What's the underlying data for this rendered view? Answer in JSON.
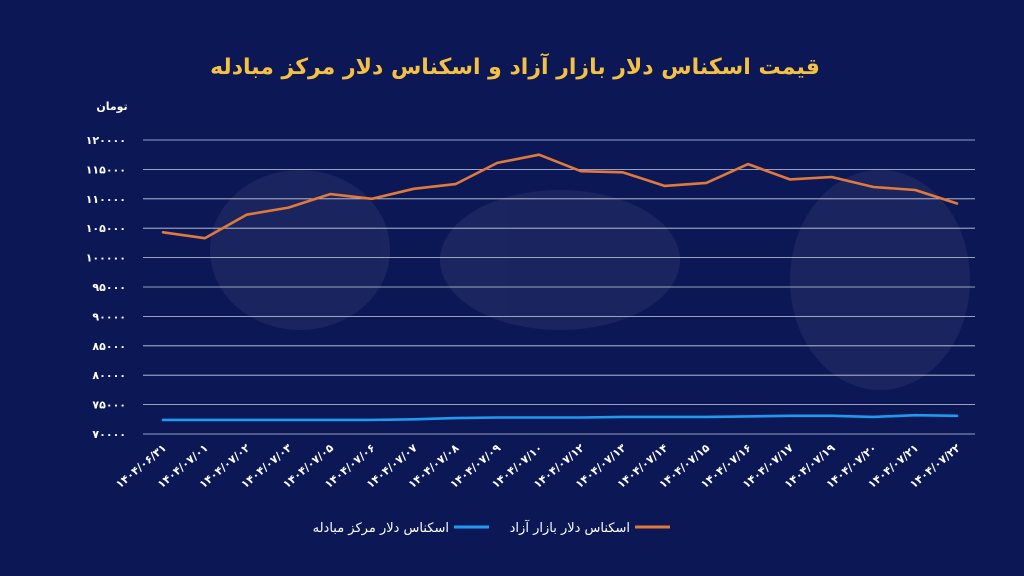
{
  "colors": {
    "background": "#0c1856",
    "title": "#f5c142",
    "text": "#ffffff",
    "grid": "#c9cde0",
    "free_market": "#e07a3c",
    "exchange_center": "#1e9bf0"
  },
  "chart_data": {
    "type": "line",
    "title": "قیمت اسکناس دلار بازار آزاد و اسکناس دلار مرکز مبادله",
    "ylabel": "تومان",
    "xlabel": "",
    "ylim": [
      70000,
      120000
    ],
    "yticks": [
      70000,
      75000,
      80000,
      85000,
      90000,
      95000,
      100000,
      105000,
      110000,
      115000,
      120000
    ],
    "ytick_labels": [
      "۷۰۰۰۰",
      "۷۵۰۰۰",
      "۸۰۰۰۰",
      "۸۵۰۰۰",
      "۹۰۰۰۰",
      "۹۵۰۰۰",
      "۱۰۰۰۰۰",
      "۱۰۵۰۰۰",
      "۱۱۰۰۰۰",
      "۱۱۵۰۰۰",
      "۱۲۰۰۰۰"
    ],
    "grid": true,
    "legend_position": "bottom",
    "categories": [
      "۱۴۰۴/۰۶/۳۱",
      "۱۴۰۴/۰۷/۰۱",
      "۱۴۰۴/۰۷/۰۲",
      "۱۴۰۴/۰۷/۰۳",
      "۱۴۰۴/۰۷/۰۵",
      "۱۴۰۴/۰۷/۰۶",
      "۱۴۰۴/۰۷/۰۷",
      "۱۴۰۴/۰۷/۰۸",
      "۱۴۰۴/۰۷/۰۹",
      "۱۴۰۴/۰۷/۱۰",
      "۱۴۰۴/۰۷/۱۲",
      "۱۴۰۴/۰۷/۱۳",
      "۱۴۰۴/۰۷/۱۴",
      "۱۴۰۴/۰۷/۱۵",
      "۱۴۰۴/۰۷/۱۶",
      "۱۴۰۴/۰۷/۱۷",
      "۱۴۰۴/۰۷/۱۹",
      "۱۴۰۴/۰۷/۲۰",
      "۱۴۰۴/۰۷/۲۱",
      "۱۴۰۴/۰۷/۲۲"
    ],
    "series": [
      {
        "name": "اسکناس دلار مرکز مبادله",
        "color": "#1e9bf0",
        "values": [
          72400,
          72400,
          72400,
          72400,
          72400,
          72400,
          72500,
          72700,
          72800,
          72800,
          72800,
          72900,
          72900,
          72900,
          73000,
          73100,
          73100,
          72900,
          73200,
          73100
        ]
      },
      {
        "name": "اسکناس دلار بازار آزاد",
        "color": "#e07a3c",
        "values": [
          104300,
          103300,
          107300,
          108500,
          110800,
          110000,
          111700,
          112500,
          116100,
          117500,
          114700,
          114500,
          112200,
          112700,
          115900,
          113300,
          113700,
          112000,
          111500,
          109200
        ]
      }
    ]
  }
}
